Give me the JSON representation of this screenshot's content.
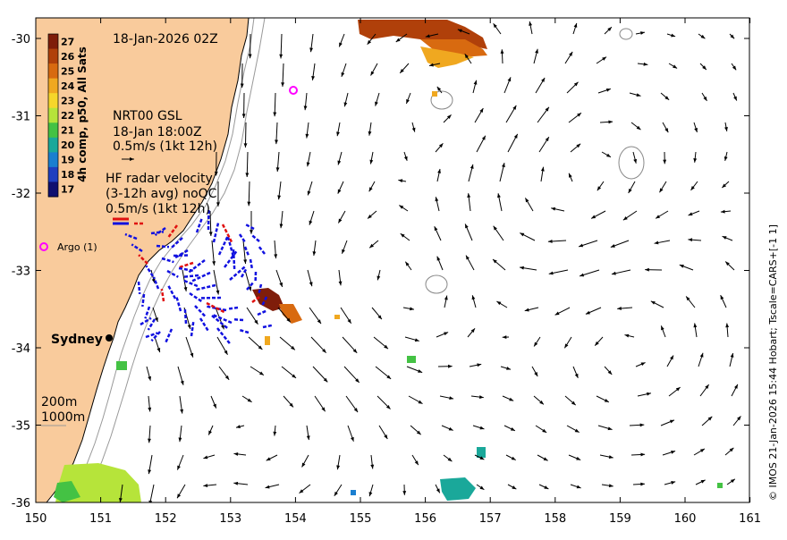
{
  "map": {
    "date_label": "18-Jan-2026 02Z",
    "colorbar": {
      "label": "4h comp, p50, All Sats",
      "ticks": [
        "27",
        "26",
        "25",
        "24",
        "23",
        "22",
        "21",
        "20",
        "19",
        "18",
        "17"
      ],
      "colors": [
        "#7f1d0a",
        "#b0400a",
        "#d86a10",
        "#f0a820",
        "#f6d62a",
        "#b6e43a",
        "#44c244",
        "#1aa89a",
        "#1a7fd0",
        "#1f3fc0",
        "#101070"
      ]
    },
    "gsl": {
      "line1": "NRT00 GSL",
      "line2": "18-Jan 18:00Z",
      "line3": "0.5m/s (1kt 12h)"
    },
    "hf_radar": {
      "line1": "HF radar velocity",
      "line2": "(3-12h avg) noQC",
      "line3": "0.5m/s (1kt 12h)"
    },
    "argo_label": "Argo (1)",
    "city_label": "Sydney",
    "isobath": {
      "line1": "200m",
      "line2": "1000m"
    },
    "credit": "© IMOS 21-Jan-2026 15:44 Hobart; Tscale=CARS+[-1 1]",
    "x_ticks": [
      "150",
      "151",
      "152",
      "153",
      "154",
      "155",
      "156",
      "157",
      "158",
      "159",
      "160",
      "161"
    ],
    "y_ticks": [
      "-30",
      "-31",
      "-32",
      "-33",
      "-34",
      "-35",
      "-36"
    ],
    "colors": {
      "land": "#f9cb9c",
      "arrow": "#000000",
      "radar_blue": "#1010e0",
      "radar_red": "#e01010",
      "argo": "#ff00ff"
    }
  }
}
